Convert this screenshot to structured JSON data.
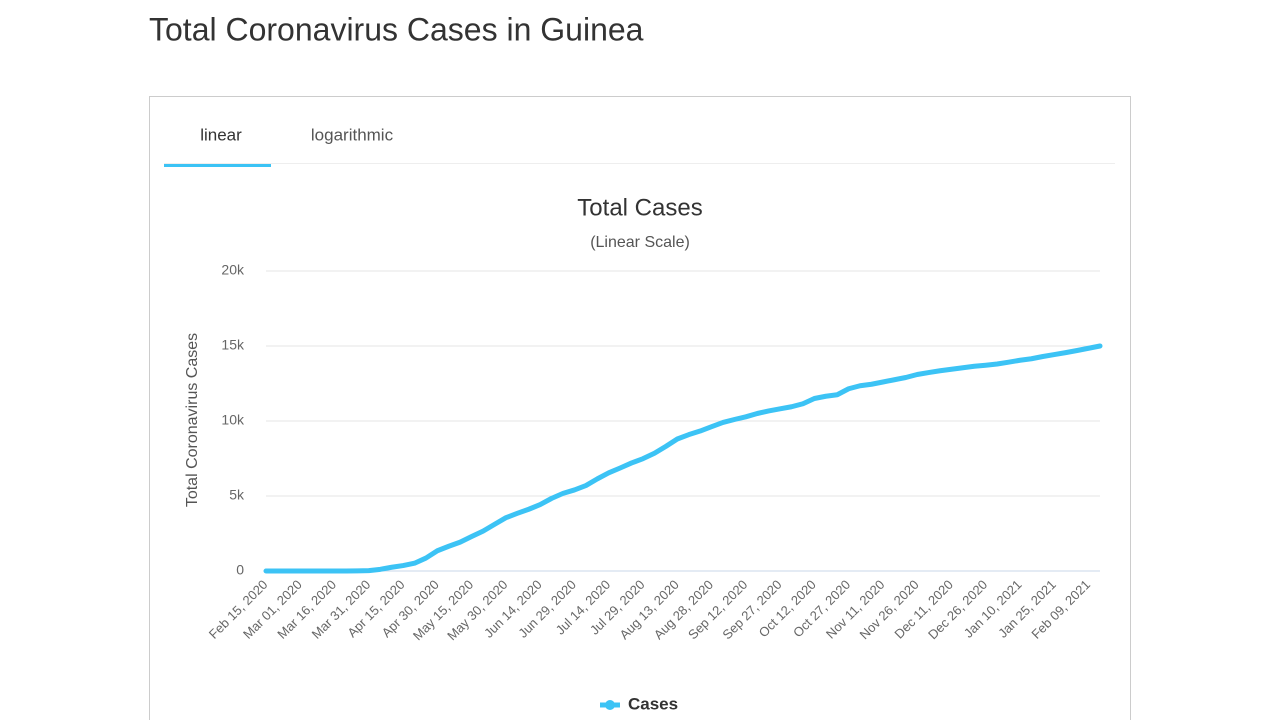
{
  "header": {
    "title": "Total Coronavirus Cases in Guinea"
  },
  "tabs": [
    "linear",
    "logarithmic"
  ],
  "chart_data": {
    "type": "line",
    "title": "Total Cases",
    "subtitle": "(Linear Scale)",
    "y_label": "Total Coronavirus Cases",
    "categories": [
      "Feb 15, 2020",
      null,
      null,
      "Mar 01, 2020",
      null,
      null,
      "Mar 16, 2020",
      null,
      null,
      "Mar 31, 2020",
      null,
      null,
      "Apr 15, 2020",
      null,
      null,
      "Apr 30, 2020",
      null,
      null,
      "May 15, 2020",
      null,
      null,
      "May 30, 2020",
      null,
      null,
      "Jun 14, 2020",
      null,
      null,
      "Jun 29, 2020",
      null,
      null,
      "Jul 14, 2020",
      null,
      null,
      "Jul 29, 2020",
      null,
      null,
      "Aug 13, 2020",
      null,
      null,
      "Aug 28, 2020",
      null,
      null,
      "Sep 12, 2020",
      null,
      null,
      "Sep 27, 2020",
      null,
      null,
      "Oct 12, 2020",
      null,
      null,
      "Oct 27, 2020",
      null,
      null,
      "Nov 11, 2020",
      null,
      null,
      "Nov 26, 2020",
      null,
      null,
      "Dec 11, 2020",
      null,
      null,
      "Dec 26, 2020",
      null,
      null,
      "Jan 10, 2021",
      null,
      null,
      "Jan 25, 2021",
      null,
      null,
      "Feb 09, 2021",
      null
    ],
    "series": [
      {
        "name": "Cases",
        "color": "#3cc3f5",
        "values": [
          0,
          0,
          0,
          0,
          0,
          0,
          1,
          2,
          8,
          22,
          111,
          250,
          363,
          518,
          862,
          1351,
          1650,
          1927,
          2298,
          2658,
          3110,
          3553,
          3844,
          4117,
          4426,
          4841,
          5174,
          5404,
          5697,
          6141,
          6544,
          6867,
          7203,
          7489,
          7849,
          8311,
          8801,
          9090,
          9330,
          9619,
          9903,
          10100,
          10280,
          10500,
          10670,
          10810,
          10950,
          11150,
          11500,
          11650,
          11750,
          12150,
          12350,
          12450,
          12600,
          12750,
          12900,
          13100,
          13230,
          13350,
          13450,
          13550,
          13650,
          13720,
          13800,
          13920,
          14050,
          14150,
          14300,
          14430,
          14560,
          14700,
          14850,
          15000
        ]
      }
    ],
    "ylim": [
      0,
      20000
    ],
    "yticks": [
      0,
      {
        "value": 5000,
        "label": "5k"
      },
      {
        "value": 10000,
        "label": "10k"
      },
      {
        "value": 15000,
        "label": "15k"
      },
      {
        "value": 20000,
        "label": "20k"
      }
    ],
    "grid": true,
    "legend": "bottom"
  }
}
